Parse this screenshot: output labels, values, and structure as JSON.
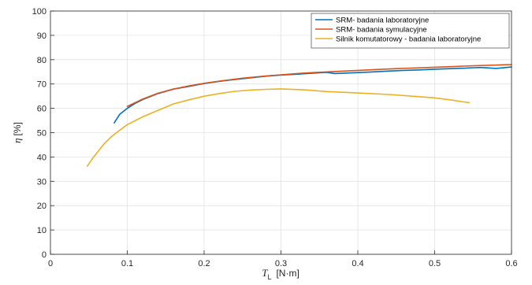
{
  "chart_data": {
    "type": "line",
    "xlim": [
      0,
      0.6
    ],
    "ylim": [
      0,
      100
    ],
    "xticks": [
      0,
      0.1,
      0.2,
      0.3,
      0.4,
      0.5,
      0.6
    ],
    "xtick_labels": [
      "0",
      "0.1",
      "0.2",
      "0.3",
      "0.4",
      "0.5",
      "0.6"
    ],
    "yticks": [
      0,
      10,
      20,
      30,
      40,
      50,
      60,
      70,
      80,
      90,
      100
    ],
    "ytick_labels": [
      "0",
      "10",
      "20",
      "30",
      "40",
      "50",
      "60",
      "70",
      "80",
      "90",
      "100"
    ],
    "xlabel": {
      "symbol": "T",
      "subscript": "L",
      "unit": "[N·m]"
    },
    "ylabel": {
      "symbol": "η",
      "unit": "[%]"
    },
    "grid": true,
    "legend_position": "top-right",
    "series": [
      {
        "name": "SRM- badania laboratoryjne",
        "color": "#0072bd",
        "x": [
          0.083,
          0.09,
          0.1,
          0.11,
          0.12,
          0.14,
          0.16,
          0.18,
          0.2,
          0.22,
          0.23,
          0.25,
          0.28,
          0.3,
          0.32,
          0.35,
          0.36,
          0.37,
          0.38,
          0.4,
          0.42,
          0.44,
          0.46,
          0.48,
          0.5,
          0.52,
          0.54,
          0.55,
          0.56,
          0.58,
          0.6
        ],
        "y": [
          54.0,
          57.5,
          60.0,
          62.0,
          63.6,
          66.1,
          67.9,
          69.0,
          70.2,
          71.1,
          71.5,
          72.2,
          73.2,
          73.7,
          74.0,
          74.6,
          74.8,
          74.3,
          74.4,
          74.7,
          75.0,
          75.3,
          75.6,
          75.8,
          76.1,
          76.3,
          76.5,
          76.7,
          76.8,
          76.4,
          77.0
        ]
      },
      {
        "name": "SRM- badania symulacyjne",
        "color": "#d95319",
        "x": [
          0.1,
          0.12,
          0.14,
          0.16,
          0.18,
          0.2,
          0.22,
          0.25,
          0.28,
          0.3,
          0.33,
          0.36,
          0.4,
          0.45,
          0.5,
          0.55,
          0.6
        ],
        "y": [
          60.8,
          63.8,
          66.2,
          67.9,
          69.2,
          70.3,
          71.2,
          72.4,
          73.3,
          73.8,
          74.5,
          75.0,
          75.6,
          76.3,
          76.9,
          77.5,
          78.0
        ]
      },
      {
        "name": "Silnik komutatorowy - badania laboratoryjne",
        "color": "#edb120",
        "x": [
          0.048,
          0.055,
          0.06,
          0.07,
          0.08,
          0.09,
          0.1,
          0.12,
          0.14,
          0.16,
          0.18,
          0.2,
          0.22,
          0.24,
          0.26,
          0.28,
          0.3,
          0.33,
          0.36,
          0.4,
          0.44,
          0.48,
          0.5,
          0.52,
          0.545
        ],
        "y": [
          36.2,
          39.5,
          41.5,
          45.5,
          48.5,
          51.0,
          53.3,
          56.5,
          59.2,
          61.8,
          63.5,
          65.0,
          66.1,
          67.0,
          67.5,
          67.8,
          68.0,
          67.6,
          66.9,
          66.3,
          65.7,
          64.8,
          64.3,
          63.5,
          62.3
        ]
      }
    ]
  }
}
